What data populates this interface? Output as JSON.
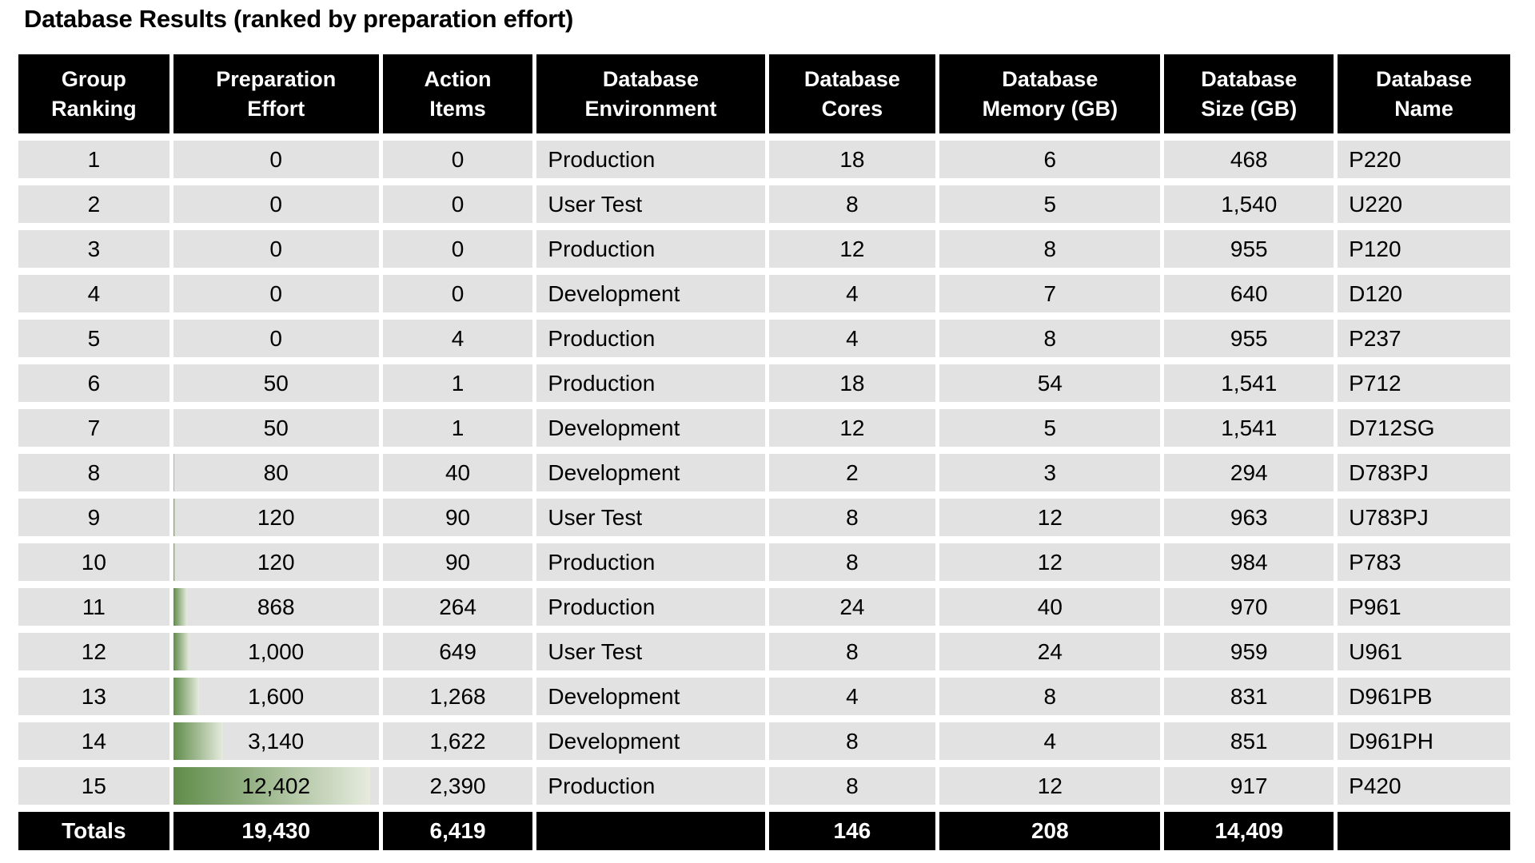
{
  "title": "Database Results (ranked by preparation effort)",
  "colors": {
    "header_bg": "#000000",
    "header_text": "#ffffff",
    "row_bg": "#e2e2e2",
    "bar_gradient_start": "#608c4a",
    "bar_gradient_end": "#e6ebde"
  },
  "columns": [
    {
      "key": "ranking",
      "label": "Group\nRanking",
      "align": "center"
    },
    {
      "key": "prep_effort",
      "label": "Preparation\nEffort",
      "align": "center"
    },
    {
      "key": "action_items",
      "label": "Action\nItems",
      "align": "center"
    },
    {
      "key": "environment",
      "label": "Database\nEnvironment",
      "align": "left"
    },
    {
      "key": "cores",
      "label": "Database\nCores",
      "align": "center"
    },
    {
      "key": "memory_gb",
      "label": "Database\nMemory (GB)",
      "align": "center"
    },
    {
      "key": "size_gb",
      "label": "Database\nSize (GB)",
      "align": "center"
    },
    {
      "key": "name",
      "label": "Database\nName",
      "align": "left"
    }
  ],
  "rows": [
    {
      "ranking": "1",
      "prep_effort": "0",
      "prep_value": 0,
      "action_items": "0",
      "environment": "Production",
      "cores": "18",
      "memory_gb": "6",
      "size_gb": "468",
      "name": "P220"
    },
    {
      "ranking": "2",
      "prep_effort": "0",
      "prep_value": 0,
      "action_items": "0",
      "environment": "User Test",
      "cores": "8",
      "memory_gb": "5",
      "size_gb": "1,540",
      "name": "U220"
    },
    {
      "ranking": "3",
      "prep_effort": "0",
      "prep_value": 0,
      "action_items": "0",
      "environment": "Production",
      "cores": "12",
      "memory_gb": "8",
      "size_gb": "955",
      "name": "P120"
    },
    {
      "ranking": "4",
      "prep_effort": "0",
      "prep_value": 0,
      "action_items": "0",
      "environment": "Development",
      "cores": "4",
      "memory_gb": "7",
      "size_gb": "640",
      "name": "D120"
    },
    {
      "ranking": "5",
      "prep_effort": "0",
      "prep_value": 0,
      "action_items": "4",
      "environment": "Production",
      "cores": "4",
      "memory_gb": "8",
      "size_gb": "955",
      "name": "P237"
    },
    {
      "ranking": "6",
      "prep_effort": "50",
      "prep_value": 50,
      "action_items": "1",
      "environment": "Production",
      "cores": "18",
      "memory_gb": "54",
      "size_gb": "1,541",
      "name": "P712"
    },
    {
      "ranking": "7",
      "prep_effort": "50",
      "prep_value": 50,
      "action_items": "1",
      "environment": "Development",
      "cores": "12",
      "memory_gb": "5",
      "size_gb": "1,541",
      "name": "D712SG"
    },
    {
      "ranking": "8",
      "prep_effort": "80",
      "prep_value": 80,
      "action_items": "40",
      "environment": "Development",
      "cores": "2",
      "memory_gb": "3",
      "size_gb": "294",
      "name": "D783PJ"
    },
    {
      "ranking": "9",
      "prep_effort": "120",
      "prep_value": 120,
      "action_items": "90",
      "environment": "User Test",
      "cores": "8",
      "memory_gb": "12",
      "size_gb": "963",
      "name": "U783PJ"
    },
    {
      "ranking": "10",
      "prep_effort": "120",
      "prep_value": 120,
      "action_items": "90",
      "environment": "Production",
      "cores": "8",
      "memory_gb": "12",
      "size_gb": "984",
      "name": "P783"
    },
    {
      "ranking": "11",
      "prep_effort": "868",
      "prep_value": 868,
      "action_items": "264",
      "environment": "Production",
      "cores": "24",
      "memory_gb": "40",
      "size_gb": "970",
      "name": "P961"
    },
    {
      "ranking": "12",
      "prep_effort": "1,000",
      "prep_value": 1000,
      "action_items": "649",
      "environment": "User Test",
      "cores": "8",
      "memory_gb": "24",
      "size_gb": "959",
      "name": "U961"
    },
    {
      "ranking": "13",
      "prep_effort": "1,600",
      "prep_value": 1600,
      "action_items": "1,268",
      "environment": "Development",
      "cores": "4",
      "memory_gb": "8",
      "size_gb": "831",
      "name": "D961PB"
    },
    {
      "ranking": "14",
      "prep_effort": "3,140",
      "prep_value": 3140,
      "action_items": "1,622",
      "environment": "Development",
      "cores": "8",
      "memory_gb": "4",
      "size_gb": "851",
      "name": "D961PH"
    },
    {
      "ranking": "15",
      "prep_effort": "12,402",
      "prep_value": 12402,
      "action_items": "2,390",
      "environment": "Production",
      "cores": "8",
      "memory_gb": "12",
      "size_gb": "917",
      "name": "P420"
    }
  ],
  "totals_row": {
    "label": "Totals",
    "prep_effort": "19,430",
    "action_items": "6,419",
    "environment": "",
    "cores": "146",
    "memory_gb": "208",
    "size_gb": "14,409",
    "name": ""
  },
  "chart_data": {
    "type": "table",
    "title": "Database Results (ranked by preparation effort)",
    "columns": [
      "Group Ranking",
      "Preparation Effort",
      "Action Items",
      "Database Environment",
      "Database Cores",
      "Database Memory (GB)",
      "Database Size (GB)",
      "Database Name"
    ],
    "rows": [
      [
        1,
        0,
        0,
        "Production",
        18,
        6,
        468,
        "P220"
      ],
      [
        2,
        0,
        0,
        "User Test",
        8,
        5,
        1540,
        "U220"
      ],
      [
        3,
        0,
        0,
        "Production",
        12,
        8,
        955,
        "P120"
      ],
      [
        4,
        0,
        0,
        "Development",
        4,
        7,
        640,
        "D120"
      ],
      [
        5,
        0,
        4,
        "Production",
        4,
        8,
        955,
        "P237"
      ],
      [
        6,
        50,
        1,
        "Production",
        18,
        54,
        1541,
        "P712"
      ],
      [
        7,
        50,
        1,
        "Development",
        12,
        5,
        1541,
        "D712SG"
      ],
      [
        8,
        80,
        40,
        "Development",
        2,
        3,
        294,
        "D783PJ"
      ],
      [
        9,
        120,
        90,
        "User Test",
        8,
        12,
        963,
        "U783PJ"
      ],
      [
        10,
        120,
        90,
        "Production",
        8,
        12,
        984,
        "P783"
      ],
      [
        11,
        868,
        264,
        "Production",
        24,
        40,
        970,
        "P961"
      ],
      [
        12,
        1000,
        649,
        "User Test",
        8,
        24,
        959,
        "U961"
      ],
      [
        13,
        1600,
        1268,
        "Development",
        4,
        8,
        831,
        "D961PB"
      ],
      [
        14,
        3140,
        1622,
        "Development",
        8,
        4,
        851,
        "D961PH"
      ],
      [
        15,
        12402,
        2390,
        "Production",
        8,
        12,
        917,
        "P420"
      ]
    ],
    "totals": [
      "Totals",
      19430,
      6419,
      "",
      146,
      208,
      14409,
      ""
    ],
    "databar_column": "Preparation Effort",
    "databar_max": 12402,
    "databar_max_fill_pct": 96
  }
}
